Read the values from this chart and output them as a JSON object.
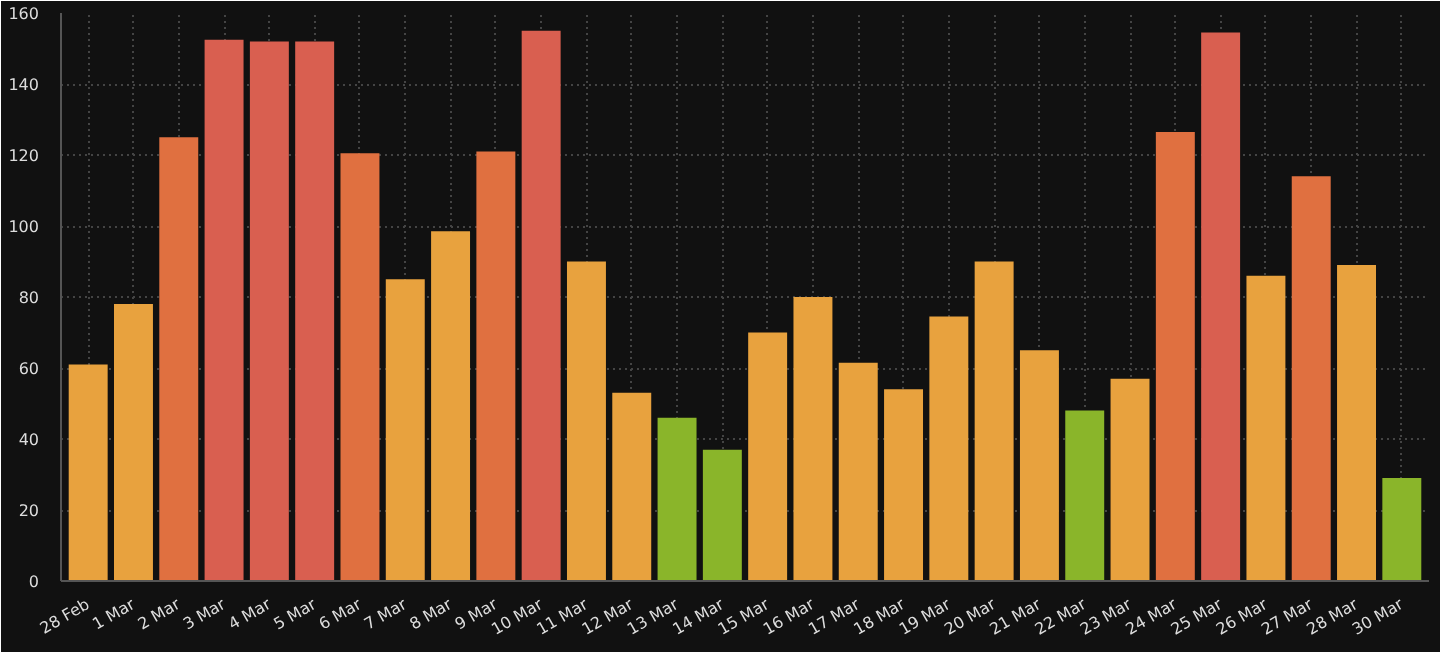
{
  "chart_data": {
    "type": "bar",
    "categories": [
      "28 Feb",
      "1 Mar",
      "2 Mar",
      "3 Mar",
      "4 Mar",
      "5 Mar",
      "6 Mar",
      "7 Mar",
      "8 Mar",
      "9 Mar",
      "10 Mar",
      "11 Mar",
      "12 Mar",
      "13 Mar",
      "14 Mar",
      "15 Mar",
      "16 Mar",
      "17 Mar",
      "18 Mar",
      "19 Mar",
      "20 Mar",
      "21 Mar",
      "22 Mar",
      "23 Mar",
      "24 Mar",
      "25 Mar",
      "26 Mar",
      "27 Mar",
      "28 Mar",
      "30 Mar"
    ],
    "values": [
      61,
      78,
      125,
      152.5,
      152,
      152,
      120.5,
      85,
      98.5,
      121,
      155,
      90,
      53,
      46,
      37,
      70,
      80,
      61.5,
      54,
      74.5,
      90,
      65,
      48,
      57,
      126.5,
      154.5,
      86,
      114,
      89,
      29
    ],
    "colors": [
      "#e8a23e",
      "#e8a23e",
      "#e07040",
      "#d95f50",
      "#d95f50",
      "#d95f50",
      "#e07040",
      "#e8a23e",
      "#e8a23e",
      "#e07040",
      "#d95f50",
      "#e8a23e",
      "#e8a23e",
      "#8ab52a",
      "#8ab52a",
      "#e8a23e",
      "#e8a23e",
      "#e8a23e",
      "#e8a23e",
      "#e8a23e",
      "#e8a23e",
      "#e8a23e",
      "#8ab52a",
      "#e8a23e",
      "#e07040",
      "#d95f50",
      "#e8a23e",
      "#e07040",
      "#e8a23e",
      "#8ab52a"
    ],
    "ylim": [
      0,
      160
    ],
    "yticks": [
      0,
      20,
      40,
      60,
      80,
      100,
      120,
      140,
      160
    ],
    "grid": true
  }
}
